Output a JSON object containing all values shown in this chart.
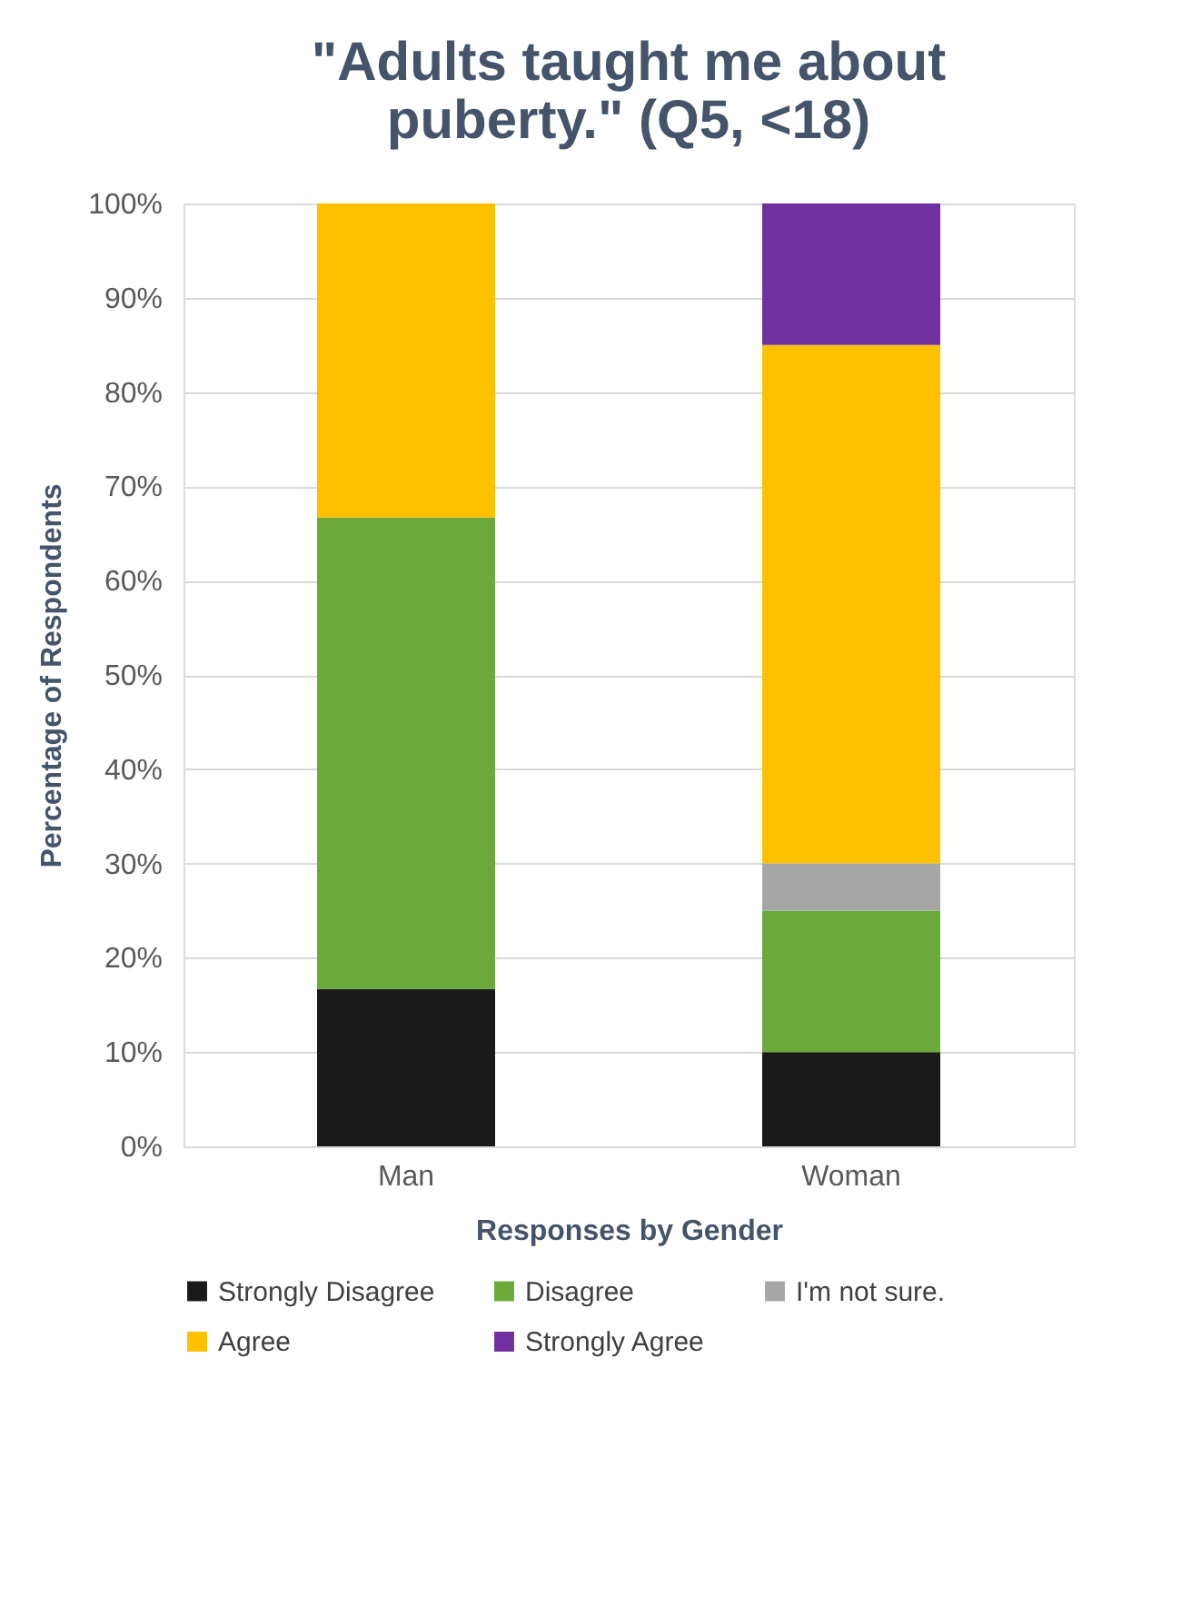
{
  "chart_data": {
    "type": "bar",
    "stacked": true,
    "title": "\"Adults taught me about puberty.\" (Q5, <18)",
    "xlabel": "Responses by Gender",
    "ylabel": "Percentage of Respondents",
    "categories": [
      "Man",
      "Woman"
    ],
    "series": [
      {
        "name": "Strongly Disagree",
        "color": "#1a1a1a",
        "values": [
          16.7,
          10
        ]
      },
      {
        "name": "Disagree",
        "color": "#6aaa3a",
        "values": [
          50,
          15
        ]
      },
      {
        "name": "I'm not sure.",
        "color": "#a6a6a6",
        "values": [
          null,
          5
        ]
      },
      {
        "name": "Agree",
        "color": "#ffc000",
        "values": [
          33.3,
          55
        ]
      },
      {
        "name": "Strongly Agree",
        "color": "#7030a0",
        "values": [
          null,
          15
        ]
      }
    ],
    "ylim": [
      0,
      100
    ],
    "yticks": [
      {
        "value": 0,
        "label": "0%"
      },
      {
        "value": 10,
        "label": "10%"
      },
      {
        "value": 20,
        "label": "20%"
      },
      {
        "value": 30,
        "label": "30%"
      },
      {
        "value": 40,
        "label": "40%"
      },
      {
        "value": 50,
        "label": "50%"
      },
      {
        "value": 60,
        "label": "60%"
      },
      {
        "value": 70,
        "label": "70%"
      },
      {
        "value": 80,
        "label": "80%"
      },
      {
        "value": 90,
        "label": "90%"
      },
      {
        "value": 100,
        "label": "100%"
      }
    ],
    "grid": "y",
    "legend": "bottom"
  }
}
